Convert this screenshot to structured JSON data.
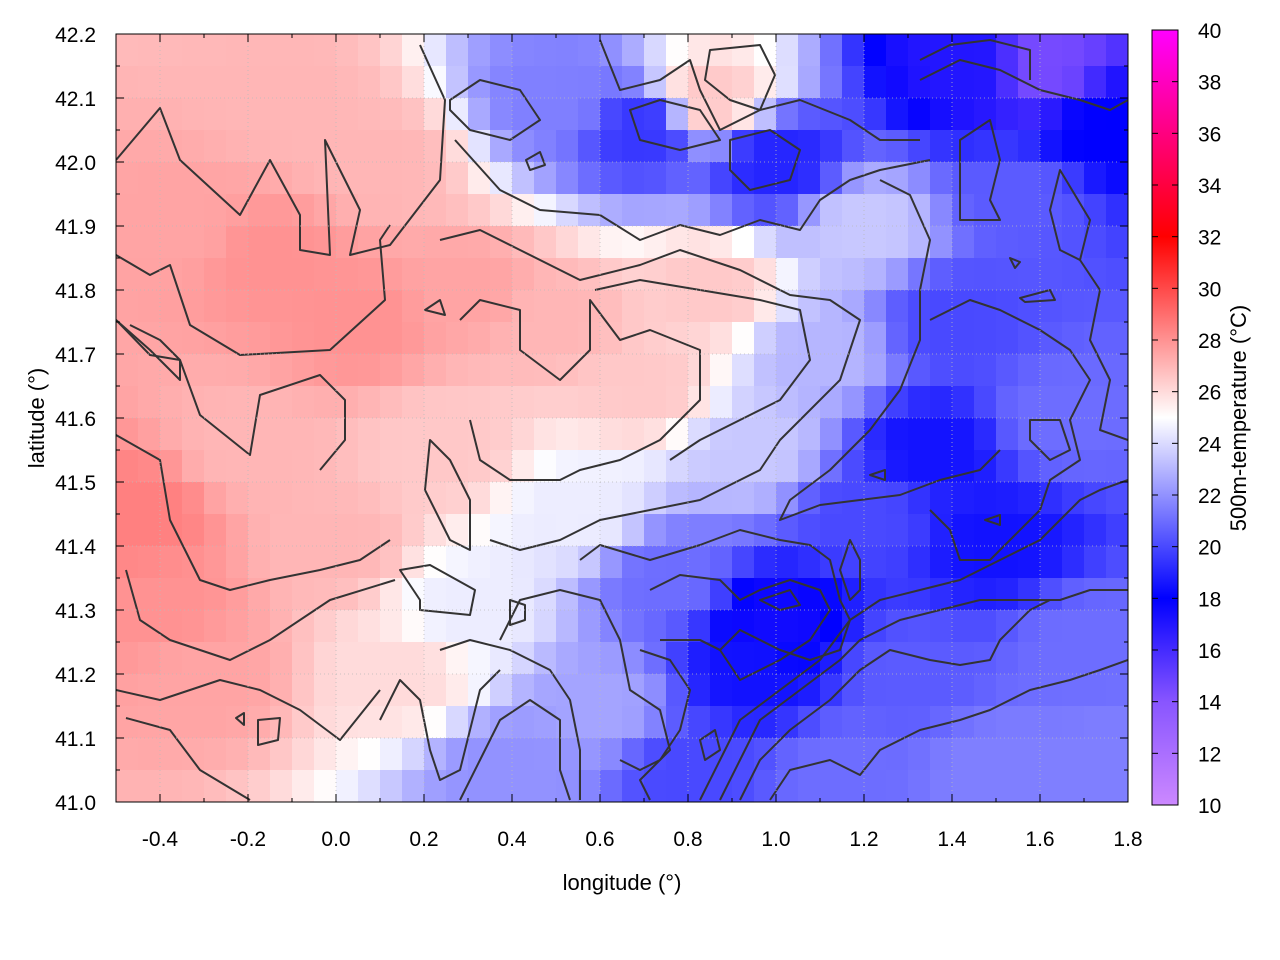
{
  "chart_data": {
    "type": "heatmap",
    "xlabel": "longitude (°)",
    "ylabel": "latitude (°)",
    "colorbar_label": "500m-temperature (°C)",
    "xlim": [
      -0.5,
      1.8
    ],
    "ylim": [
      41.0,
      42.2
    ],
    "x_ticks": [
      -0.4,
      -0.2,
      0.0,
      0.2,
      0.4,
      0.6,
      0.8,
      1.0,
      1.2,
      1.4,
      1.6,
      1.8
    ],
    "x_tick_labels": [
      "-0.4",
      "-0.2",
      "0.0",
      "0.2",
      "0.4",
      "0.6",
      "0.8",
      "1.0",
      "1.2",
      "1.4",
      "1.6",
      "1.8"
    ],
    "y_ticks": [
      41.0,
      41.1,
      41.2,
      41.3,
      41.4,
      41.5,
      41.6,
      41.7,
      41.8,
      41.9,
      42.0,
      42.1,
      42.2
    ],
    "y_tick_labels": [
      "41.0",
      "41.1",
      "41.2",
      "41.3",
      "41.4",
      "41.5",
      "41.6",
      "41.7",
      "41.8",
      "41.9",
      "42.0",
      "42.1",
      "42.2"
    ],
    "colorbar_range": [
      10,
      40
    ],
    "colorbar_ticks": [
      10,
      12,
      14,
      16,
      18,
      20,
      22,
      24,
      26,
      28,
      30,
      32,
      34,
      36,
      38,
      40
    ],
    "colorbar_tick_labels": [
      "10",
      "12",
      "14",
      "16",
      "18",
      "20",
      "22",
      "24",
      "26",
      "28",
      "30",
      "32",
      "34",
      "36",
      "38",
      "40"
    ],
    "colormap": [
      {
        "value": 10,
        "color": "#cc88ff"
      },
      {
        "value": 14,
        "color": "#8855ff"
      },
      {
        "value": 18,
        "color": "#0000ff"
      },
      {
        "value": 25,
        "color": "#ffffff"
      },
      {
        "value": 32,
        "color": "#ff0000"
      },
      {
        "value": 40,
        "color": "#ff00ff"
      }
    ],
    "grid": true,
    "field_sample": [
      {
        "x": -0.45,
        "y": 41.45,
        "v": 28.5
      },
      {
        "x": -0.4,
        "y": 41.3,
        "v": 28.0
      },
      {
        "x": -0.35,
        "y": 41.9,
        "v": 27.5
      },
      {
        "x": -0.3,
        "y": 41.2,
        "v": 27.5
      },
      {
        "x": -0.2,
        "y": 41.55,
        "v": 27.0
      },
      {
        "x": -0.15,
        "y": 41.85,
        "v": 28.0
      },
      {
        "x": -0.1,
        "y": 42.1,
        "v": 27.0
      },
      {
        "x": 0.0,
        "y": 41.4,
        "v": 27.0
      },
      {
        "x": 0.05,
        "y": 41.75,
        "v": 28.0
      },
      {
        "x": 0.1,
        "y": 42.0,
        "v": 27.0
      },
      {
        "x": 0.15,
        "y": 41.2,
        "v": 26.0
      },
      {
        "x": 0.25,
        "y": 41.55,
        "v": 26.5
      },
      {
        "x": 0.3,
        "y": 41.8,
        "v": 27.5
      },
      {
        "x": 0.3,
        "y": 41.3,
        "v": 24.5
      },
      {
        "x": 0.4,
        "y": 41.05,
        "v": 22.0
      },
      {
        "x": 0.5,
        "y": 41.75,
        "v": 27.0
      },
      {
        "x": 0.5,
        "y": 42.1,
        "v": 21.5
      },
      {
        "x": 0.55,
        "y": 41.45,
        "v": 24.5
      },
      {
        "x": 0.6,
        "y": 41.15,
        "v": 22.5
      },
      {
        "x": 0.7,
        "y": 41.65,
        "v": 26.5
      },
      {
        "x": 0.7,
        "y": 42.05,
        "v": 19.5
      },
      {
        "x": 0.75,
        "y": 41.35,
        "v": 21.0
      },
      {
        "x": 0.8,
        "y": 41.05,
        "v": 20.0
      },
      {
        "x": 0.85,
        "y": 41.8,
        "v": 26.5
      },
      {
        "x": 0.85,
        "y": 42.1,
        "v": 26.5
      },
      {
        "x": 0.95,
        "y": 41.55,
        "v": 23.5
      },
      {
        "x": 0.95,
        "y": 41.2,
        "v": 18.5
      },
      {
        "x": 1.0,
        "y": 41.28,
        "v": 17.5
      },
      {
        "x": 1.0,
        "y": 42.0,
        "v": 19.0
      },
      {
        "x": 1.1,
        "y": 41.7,
        "v": 23.0
      },
      {
        "x": 1.15,
        "y": 41.05,
        "v": 21.0
      },
      {
        "x": 1.2,
        "y": 41.45,
        "v": 20.0
      },
      {
        "x": 1.2,
        "y": 41.9,
        "v": 23.5
      },
      {
        "x": 1.3,
        "y": 41.2,
        "v": 20.5
      },
      {
        "x": 1.35,
        "y": 41.55,
        "v": 18.5
      },
      {
        "x": 1.4,
        "y": 41.75,
        "v": 20.0
      },
      {
        "x": 1.45,
        "y": 42.15,
        "v": 17.0
      },
      {
        "x": 1.5,
        "y": 41.4,
        "v": 18.5
      },
      {
        "x": 1.5,
        "y": 41.05,
        "v": 21.5
      },
      {
        "x": 1.55,
        "y": 41.95,
        "v": 20.5
      },
      {
        "x": 1.6,
        "y": 42.15,
        "v": 14.5
      },
      {
        "x": 1.65,
        "y": 41.6,
        "v": 21.0
      },
      {
        "x": 1.7,
        "y": 41.25,
        "v": 21.0
      },
      {
        "x": 1.75,
        "y": 42.05,
        "v": 18.0
      },
      {
        "x": 1.75,
        "y": 41.05,
        "v": 21.5
      }
    ]
  }
}
